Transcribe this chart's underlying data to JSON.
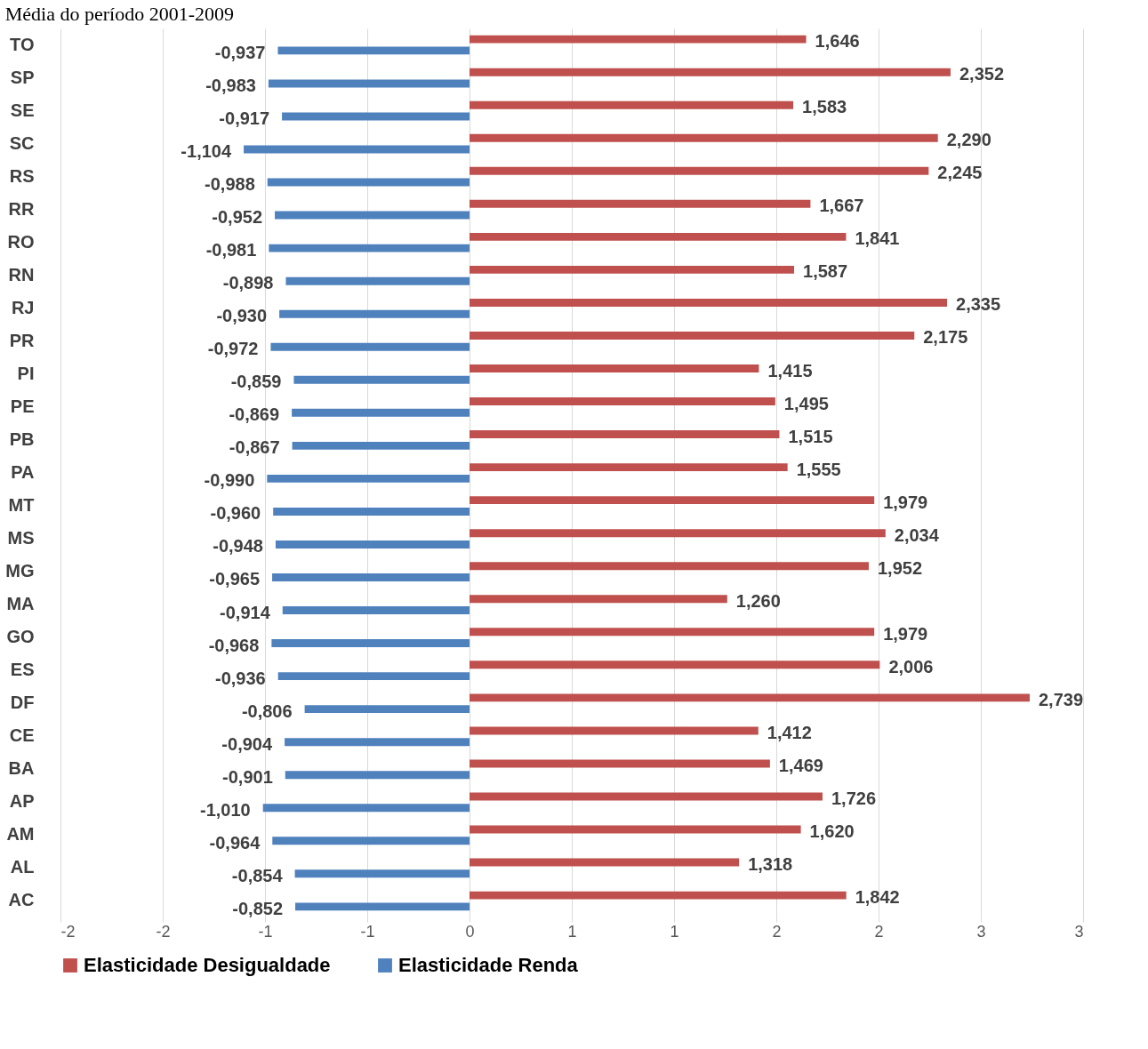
{
  "chart_data": {
    "type": "bar",
    "orientation": "horizontal",
    "title": "Média do período 2001-2009",
    "categories": [
      "TO",
      "SP",
      "SE",
      "SC",
      "RS",
      "RR",
      "RO",
      "RN",
      "RJ",
      "PR",
      "PI",
      "PE",
      "PB",
      "PA",
      "MT",
      "MS",
      "MG",
      "MA",
      "GO",
      "ES",
      "DF",
      "CE",
      "BA",
      "AP",
      "AM",
      "AL",
      "AC"
    ],
    "series": [
      {
        "name": "Elasticidade Desigualdade",
        "color": "#c0504d",
        "values": [
          1.646,
          2.352,
          1.583,
          2.29,
          2.245,
          1.667,
          1.841,
          1.587,
          2.335,
          2.175,
          1.415,
          1.495,
          1.515,
          1.555,
          1.979,
          2.034,
          1.952,
          1.26,
          1.979,
          2.006,
          2.739,
          1.412,
          1.469,
          1.726,
          1.62,
          1.318,
          1.842
        ],
        "value_labels": [
          "1,646",
          "2,352",
          "1,583",
          "2,290",
          "2,245",
          "1,667",
          "1,841",
          "1,587",
          "2,335",
          "2,175",
          "1,415",
          "1,495",
          "1,515",
          "1,555",
          "1,979",
          "2,034",
          "1,952",
          "1,260",
          "1,979",
          "2,006",
          "2,739",
          "1,412",
          "1,469",
          "1,726",
          "1,620",
          "1,318",
          "1,842"
        ]
      },
      {
        "name": "Elasticidade Renda",
        "color": "#4f81bd",
        "values": [
          -0.937,
          -0.983,
          -0.917,
          -1.104,
          -0.988,
          -0.952,
          -0.981,
          -0.898,
          -0.93,
          -0.972,
          -0.859,
          -0.869,
          -0.867,
          -0.99,
          -0.96,
          -0.948,
          -0.965,
          -0.914,
          -0.968,
          -0.936,
          -0.806,
          -0.904,
          -0.901,
          -1.01,
          -0.964,
          -0.854,
          -0.852
        ],
        "value_labels": [
          "-0,937",
          "-0,983",
          "-0,917",
          "-1,104",
          "-0,988",
          "-0,952",
          "-0,981",
          "-0,898",
          "-0,930",
          "-0,972",
          "-0,859",
          "-0,869",
          "-0,867",
          "-0,990",
          "-0,960",
          "-0,948",
          "-0,965",
          "-0,914",
          "-0,968",
          "-0,936",
          "-0,806",
          "-0,904",
          "-0,901",
          "-1,010",
          "-0,964",
          "-0,854",
          "-0,852"
        ]
      }
    ],
    "xlim": [
      -2,
      3
    ],
    "xticks": [
      -2,
      {
        "value": -1.5,
        "label": "-2"
      },
      -1,
      {
        "value": -0.5,
        "label": "-1"
      },
      0,
      {
        "value": 0.5,
        "label": "1"
      },
      1,
      {
        "value": 1.5,
        "label": "2"
      },
      2,
      {
        "value": 2.5,
        "label": "3"
      },
      3
    ],
    "grid": "x",
    "legend": "bottom"
  }
}
